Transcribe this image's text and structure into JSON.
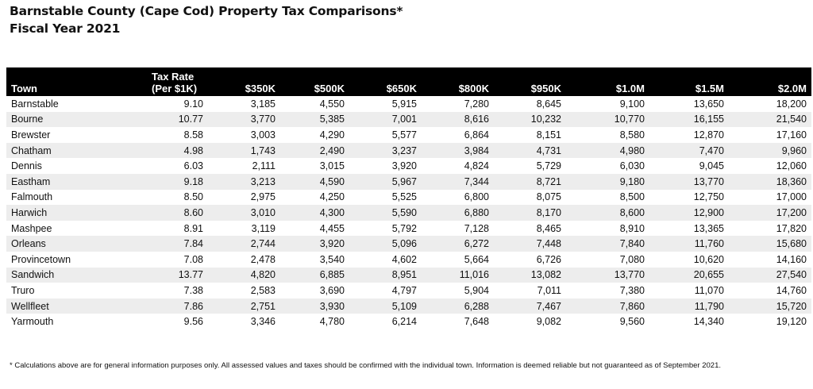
{
  "title": {
    "line1": "Barnstable County (Cape Cod) Property Tax Comparisons*",
    "line2": "Fiscal Year 2021"
  },
  "table": {
    "headers": {
      "town": "Town",
      "rate_line1": "Tax Rate",
      "rate_line2": "(Per $1K)",
      "values": [
        "$350K",
        "$500K",
        "$650K",
        "$800K",
        "$950K",
        "$1.0M",
        "$1.5M",
        "$2.0M"
      ]
    },
    "rows": [
      {
        "town": "Barnstable",
        "rate": "9.10",
        "values": [
          "3,185",
          "4,550",
          "5,915",
          "7,280",
          "8,645",
          "9,100",
          "13,650",
          "18,200"
        ]
      },
      {
        "town": "Bourne",
        "rate": "10.77",
        "values": [
          "3,770",
          "5,385",
          "7,001",
          "8,616",
          "10,232",
          "10,770",
          "16,155",
          "21,540"
        ]
      },
      {
        "town": "Brewster",
        "rate": "8.58",
        "values": [
          "3,003",
          "4,290",
          "5,577",
          "6,864",
          "8,151",
          "8,580",
          "12,870",
          "17,160"
        ]
      },
      {
        "town": "Chatham",
        "rate": "4.98",
        "values": [
          "1,743",
          "2,490",
          "3,237",
          "3,984",
          "4,731",
          "4,980",
          "7,470",
          "9,960"
        ]
      },
      {
        "town": "Dennis",
        "rate": "6.03",
        "values": [
          "2,111",
          "3,015",
          "3,920",
          "4,824",
          "5,729",
          "6,030",
          "9,045",
          "12,060"
        ]
      },
      {
        "town": "Eastham",
        "rate": "9.18",
        "values": [
          "3,213",
          "4,590",
          "5,967",
          "7,344",
          "8,721",
          "9,180",
          "13,770",
          "18,360"
        ]
      },
      {
        "town": "Falmouth",
        "rate": "8.50",
        "values": [
          "2,975",
          "4,250",
          "5,525",
          "6,800",
          "8,075",
          "8,500",
          "12,750",
          "17,000"
        ]
      },
      {
        "town": "Harwich",
        "rate": "8.60",
        "values": [
          "3,010",
          "4,300",
          "5,590",
          "6,880",
          "8,170",
          "8,600",
          "12,900",
          "17,200"
        ]
      },
      {
        "town": "Mashpee",
        "rate": "8.91",
        "values": [
          "3,119",
          "4,455",
          "5,792",
          "7,128",
          "8,465",
          "8,910",
          "13,365",
          "17,820"
        ]
      },
      {
        "town": "Orleans",
        "rate": "7.84",
        "values": [
          "2,744",
          "3,920",
          "5,096",
          "6,272",
          "7,448",
          "7,840",
          "11,760",
          "15,680"
        ]
      },
      {
        "town": "Provincetown",
        "rate": "7.08",
        "values": [
          "2,478",
          "3,540",
          "4,602",
          "5,664",
          "6,726",
          "7,080",
          "10,620",
          "14,160"
        ]
      },
      {
        "town": "Sandwich",
        "rate": "13.77",
        "values": [
          "4,820",
          "6,885",
          "8,951",
          "11,016",
          "13,082",
          "13,770",
          "20,655",
          "27,540"
        ]
      },
      {
        "town": "Truro",
        "rate": "7.38",
        "values": [
          "2,583",
          "3,690",
          "4,797",
          "5,904",
          "7,011",
          "7,380",
          "11,070",
          "14,760"
        ]
      },
      {
        "town": "Wellfleet",
        "rate": "7.86",
        "values": [
          "2,751",
          "3,930",
          "5,109",
          "6,288",
          "7,467",
          "7,860",
          "11,790",
          "15,720"
        ]
      },
      {
        "town": "Yarmouth",
        "rate": "9.56",
        "values": [
          "3,346",
          "4,780",
          "6,214",
          "7,648",
          "9,082",
          "9,560",
          "14,340",
          "19,120"
        ]
      }
    ]
  },
  "footnote": "* Calculations above are for general information purposes only. All assessed values and taxes should be confirmed with the individual town. Information is deemed reliable but not guaranteed as of September 2021."
}
